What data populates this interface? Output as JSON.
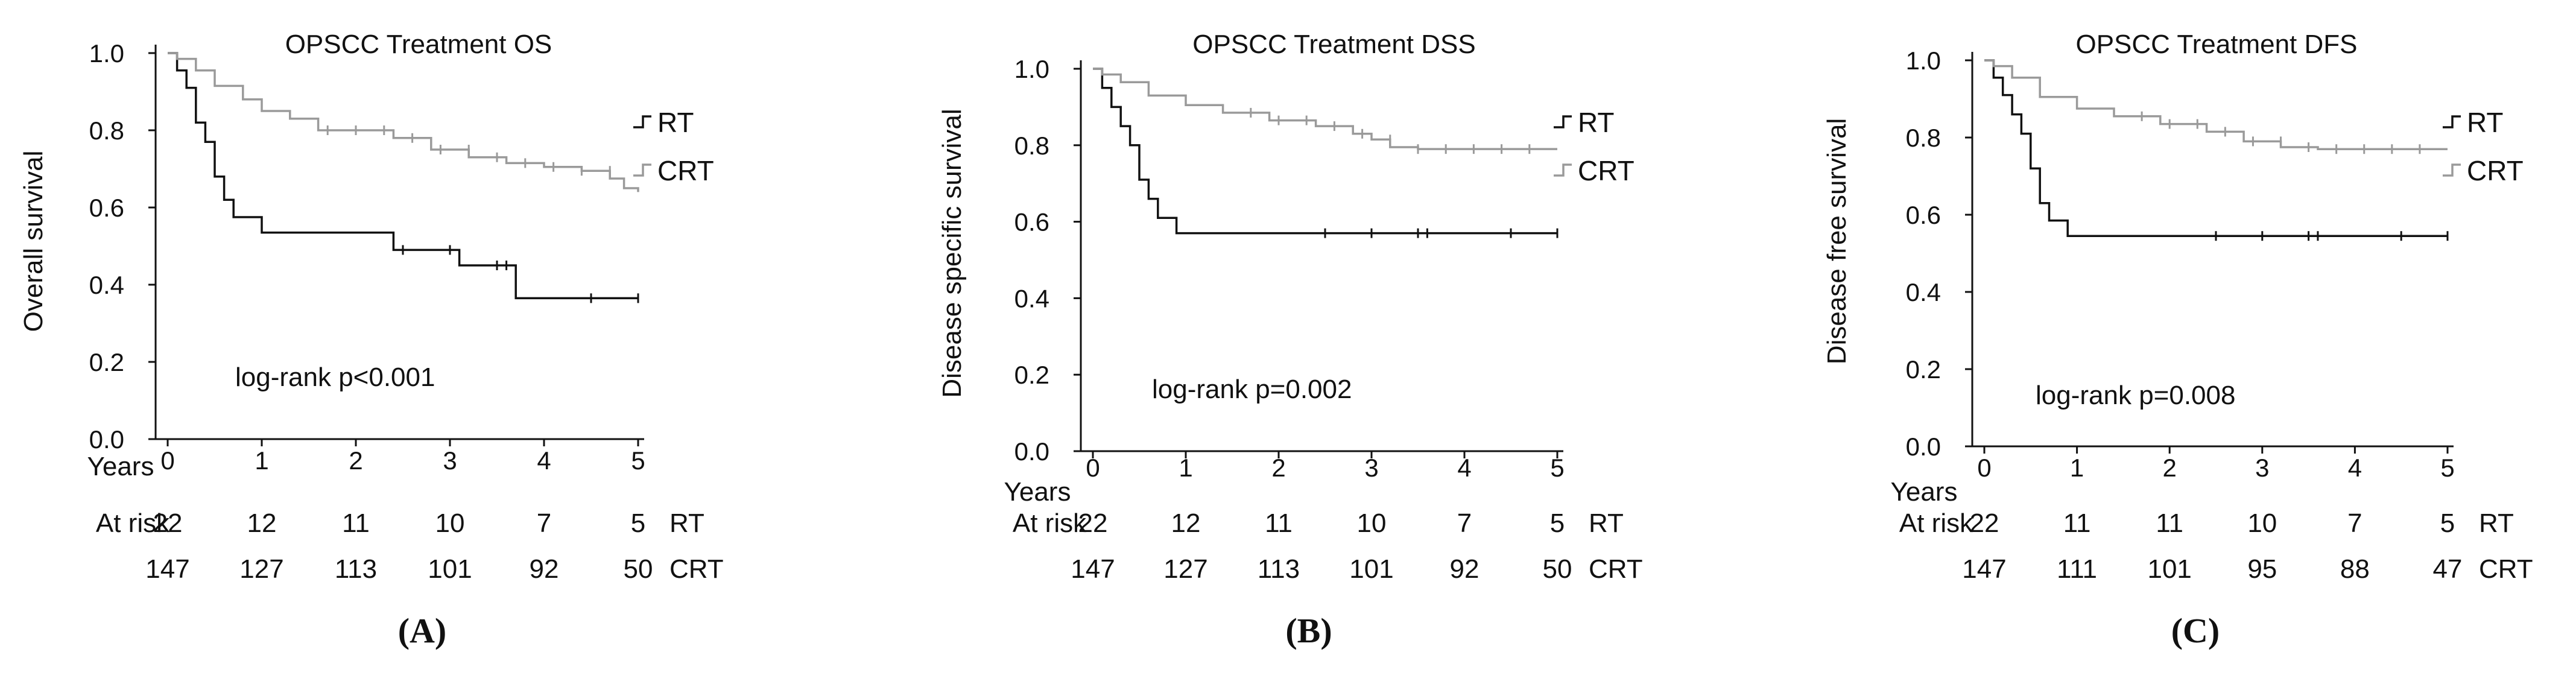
{
  "colors": {
    "rt": "#111111",
    "crt": "#9a9a9a",
    "axis": "#111111"
  },
  "chart_data": [
    {
      "type": "line",
      "panel_label": "(A)",
      "title": "OPSCC Treatment OS",
      "ylabel": "Overall survival",
      "xlabel": "Years",
      "xlim": [
        0,
        5
      ],
      "ylim": [
        0,
        1
      ],
      "xticks": [
        "0",
        "1",
        "2",
        "3",
        "4",
        "5"
      ],
      "yticks": [
        "0.0",
        "0.2",
        "0.4",
        "0.6",
        "0.8",
        "1.0"
      ],
      "annotation": "log-rank p<0.001",
      "legend": [
        "RT",
        "CRT"
      ],
      "risk_table": {
        "header": "At risk",
        "rows": [
          {
            "name": "RT",
            "values": [
              "22",
              "12",
              "11",
              "10",
              "7",
              "5"
            ]
          },
          {
            "name": "CRT",
            "values": [
              "147",
              "127",
              "113",
              "101",
              "92",
              "50"
            ]
          }
        ]
      },
      "series": [
        {
          "name": "RT",
          "x": [
            0,
            0.1,
            0.2,
            0.3,
            0.4,
            0.5,
            0.6,
            0.7,
            1.0,
            2.4,
            3.1,
            3.7,
            5.0
          ],
          "y": [
            1.0,
            0.955,
            0.91,
            0.82,
            0.77,
            0.68,
            0.62,
            0.575,
            0.535,
            0.49,
            0.45,
            0.365,
            0.365
          ]
        },
        {
          "name": "CRT",
          "x": [
            0,
            0.1,
            0.3,
            0.5,
            0.8,
            1.0,
            1.3,
            1.6,
            2.0,
            2.4,
            2.8,
            3.2,
            3.6,
            4.0,
            4.4,
            4.7,
            4.85,
            5.0
          ],
          "y": [
            1.0,
            0.985,
            0.955,
            0.915,
            0.88,
            0.85,
            0.83,
            0.8,
            0.8,
            0.78,
            0.75,
            0.73,
            0.715,
            0.705,
            0.695,
            0.675,
            0.65,
            0.64
          ]
        }
      ]
    },
    {
      "type": "line",
      "panel_label": "(B)",
      "title": "OPSCC Treatment DSS",
      "ylabel": "Disease specific survival",
      "xlabel": "Years",
      "xlim": [
        0,
        5
      ],
      "ylim": [
        0,
        1
      ],
      "xticks": [
        "0",
        "1",
        "2",
        "3",
        "4",
        "5"
      ],
      "yticks": [
        "0.0",
        "0.2",
        "0.4",
        "0.6",
        "0.8",
        "1.0"
      ],
      "annotation": "log-rank p=0.002",
      "legend": [
        "RT",
        "CRT"
      ],
      "risk_table": {
        "header": "At risk",
        "rows": [
          {
            "name": "RT",
            "values": [
              "22",
              "12",
              "11",
              "10",
              "7",
              "5"
            ]
          },
          {
            "name": "CRT",
            "values": [
              "147",
              "127",
              "113",
              "101",
              "92",
              "50"
            ]
          }
        ]
      },
      "series": [
        {
          "name": "RT",
          "x": [
            0,
            0.1,
            0.2,
            0.3,
            0.4,
            0.5,
            0.6,
            0.7,
            0.9,
            5.0
          ],
          "y": [
            1.0,
            0.95,
            0.9,
            0.85,
            0.8,
            0.71,
            0.66,
            0.61,
            0.57,
            0.57
          ]
        },
        {
          "name": "CRT",
          "x": [
            0,
            0.1,
            0.3,
            0.6,
            1.0,
            1.4,
            1.9,
            2.4,
            2.8,
            3.0,
            3.2,
            3.5,
            4.0,
            5.0
          ],
          "y": [
            1.0,
            0.985,
            0.965,
            0.93,
            0.905,
            0.885,
            0.865,
            0.85,
            0.83,
            0.815,
            0.795,
            0.79,
            0.79,
            0.79
          ]
        }
      ]
    },
    {
      "type": "line",
      "panel_label": "(C)",
      "title": "OPSCC Treatment DFS",
      "ylabel": "Disease free survival",
      "xlabel": "Years",
      "xlim": [
        0,
        5
      ],
      "ylim": [
        0,
        1
      ],
      "xticks": [
        "0",
        "1",
        "2",
        "3",
        "4",
        "5"
      ],
      "yticks": [
        "0.0",
        "0.2",
        "0.4",
        "0.6",
        "0.8",
        "1.0"
      ],
      "annotation": "log-rank p=0.008",
      "legend": [
        "RT",
        "CRT"
      ],
      "risk_table": {
        "header": "At risk",
        "rows": [
          {
            "name": "RT",
            "values": [
              "22",
              "11",
              "11",
              "10",
              "7",
              "5"
            ]
          },
          {
            "name": "CRT",
            "values": [
              "147",
              "111",
              "101",
              "95",
              "88",
              "47"
            ]
          }
        ]
      },
      "series": [
        {
          "name": "RT",
          "x": [
            0,
            0.1,
            0.2,
            0.3,
            0.4,
            0.5,
            0.6,
            0.7,
            0.9,
            5.0
          ],
          "y": [
            1.0,
            0.955,
            0.91,
            0.86,
            0.81,
            0.72,
            0.63,
            0.585,
            0.545,
            0.545
          ]
        },
        {
          "name": "CRT",
          "x": [
            0,
            0.1,
            0.3,
            0.6,
            1.0,
            1.4,
            1.9,
            2.4,
            2.8,
            3.2,
            3.6,
            4.0,
            5.0
          ],
          "y": [
            1.0,
            0.985,
            0.955,
            0.905,
            0.875,
            0.855,
            0.835,
            0.815,
            0.79,
            0.775,
            0.77,
            0.77,
            0.77
          ]
        }
      ]
    }
  ]
}
